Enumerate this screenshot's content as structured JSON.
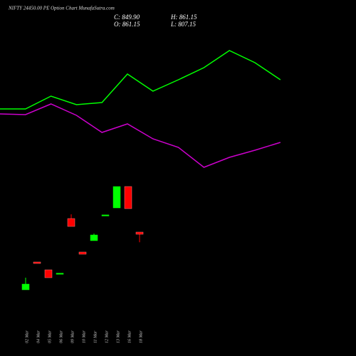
{
  "chart_data": [
    {
      "type": "candlestick",
      "title": "NIFTY 24450.00 PE Option Chart MunafaSutra.com",
      "ohlc_labels": [
        "C: 849.90",
        "H: 861.15",
        "O: 861.15",
        "L: 807.15"
      ],
      "categories": [
        "02 Mar",
        "04 Mar",
        "05 Mar",
        "06 Mar",
        "09 Mar",
        "10 Mar",
        "11 Mar",
        "12 Mar",
        "13 Mar",
        "16 Mar",
        "18 Mar"
      ],
      "open": [
        553.4,
        701.6,
        659.8,
        640,
        933.4,
        754.8,
        815.6,
        951,
        990.4,
        1104.4,
        861.15
      ],
      "high": [
        618,
        701.6,
        659.8,
        642,
        956.2,
        754.8,
        853.6,
        953,
        1104.4,
        1104.4,
        861.15
      ],
      "low": [
        553.4,
        694,
        618,
        640,
        891.6,
        743.4,
        815.6,
        951,
        990.4,
        986.6,
        807.15
      ],
      "close": [
        583.8,
        694,
        618,
        642,
        891.6,
        743.4,
        846,
        953,
        1104.4,
        986.6,
        849.9
      ],
      "up_color": "#00ff00",
      "down_color": "#ff0000",
      "ylim": [
        200,
        2100
      ]
    },
    {
      "type": "line",
      "series": [
        {
          "color": "#00ff00",
          "values": [
            1518.6,
            1518.6,
            1587,
            1541.4,
            1552.8,
            1704.8,
            1613.6,
            1674.4,
            1739,
            1830.2,
            1765.6,
            1674.4
          ]
        },
        {
          "color": "#cc00cc",
          "values": [
            1492,
            1488.2,
            1545.2,
            1484.4,
            1393.2,
            1438.8,
            1359,
            1313.4,
            1207,
            1260.2,
            1298.2,
            1340
          ]
        }
      ],
      "ylim": [
        200,
        2100
      ]
    }
  ]
}
